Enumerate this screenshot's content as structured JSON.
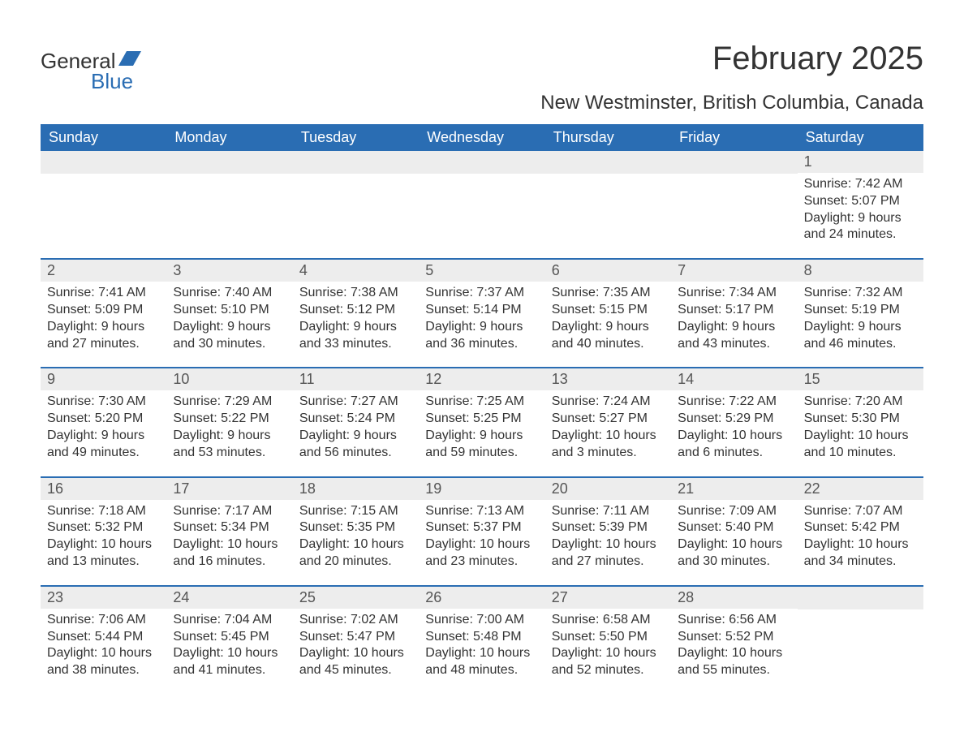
{
  "logo": {
    "text1": "General",
    "text2": "Blue"
  },
  "title": "February 2025",
  "location": "New Westminster, British Columbia, Canada",
  "colors": {
    "header_bg": "#2a6db3",
    "header_text": "#ffffff",
    "daynum_bg": "#ededed",
    "daynum_text": "#555555",
    "body_text": "#333333",
    "accent": "#2a6db3",
    "page_bg": "#ffffff"
  },
  "weekdays": [
    "Sunday",
    "Monday",
    "Tuesday",
    "Wednesday",
    "Thursday",
    "Friday",
    "Saturday"
  ],
  "weeks": [
    [
      null,
      null,
      null,
      null,
      null,
      null,
      {
        "n": "1",
        "sr": "Sunrise: 7:42 AM",
        "ss": "Sunset: 5:07 PM",
        "d1": "Daylight: 9 hours",
        "d2": "and 24 minutes."
      }
    ],
    [
      {
        "n": "2",
        "sr": "Sunrise: 7:41 AM",
        "ss": "Sunset: 5:09 PM",
        "d1": "Daylight: 9 hours",
        "d2": "and 27 minutes."
      },
      {
        "n": "3",
        "sr": "Sunrise: 7:40 AM",
        "ss": "Sunset: 5:10 PM",
        "d1": "Daylight: 9 hours",
        "d2": "and 30 minutes."
      },
      {
        "n": "4",
        "sr": "Sunrise: 7:38 AM",
        "ss": "Sunset: 5:12 PM",
        "d1": "Daylight: 9 hours",
        "d2": "and 33 minutes."
      },
      {
        "n": "5",
        "sr": "Sunrise: 7:37 AM",
        "ss": "Sunset: 5:14 PM",
        "d1": "Daylight: 9 hours",
        "d2": "and 36 minutes."
      },
      {
        "n": "6",
        "sr": "Sunrise: 7:35 AM",
        "ss": "Sunset: 5:15 PM",
        "d1": "Daylight: 9 hours",
        "d2": "and 40 minutes."
      },
      {
        "n": "7",
        "sr": "Sunrise: 7:34 AM",
        "ss": "Sunset: 5:17 PM",
        "d1": "Daylight: 9 hours",
        "d2": "and 43 minutes."
      },
      {
        "n": "8",
        "sr": "Sunrise: 7:32 AM",
        "ss": "Sunset: 5:19 PM",
        "d1": "Daylight: 9 hours",
        "d2": "and 46 minutes."
      }
    ],
    [
      {
        "n": "9",
        "sr": "Sunrise: 7:30 AM",
        "ss": "Sunset: 5:20 PM",
        "d1": "Daylight: 9 hours",
        "d2": "and 49 minutes."
      },
      {
        "n": "10",
        "sr": "Sunrise: 7:29 AM",
        "ss": "Sunset: 5:22 PM",
        "d1": "Daylight: 9 hours",
        "d2": "and 53 minutes."
      },
      {
        "n": "11",
        "sr": "Sunrise: 7:27 AM",
        "ss": "Sunset: 5:24 PM",
        "d1": "Daylight: 9 hours",
        "d2": "and 56 minutes."
      },
      {
        "n": "12",
        "sr": "Sunrise: 7:25 AM",
        "ss": "Sunset: 5:25 PM",
        "d1": "Daylight: 9 hours",
        "d2": "and 59 minutes."
      },
      {
        "n": "13",
        "sr": "Sunrise: 7:24 AM",
        "ss": "Sunset: 5:27 PM",
        "d1": "Daylight: 10 hours",
        "d2": "and 3 minutes."
      },
      {
        "n": "14",
        "sr": "Sunrise: 7:22 AM",
        "ss": "Sunset: 5:29 PM",
        "d1": "Daylight: 10 hours",
        "d2": "and 6 minutes."
      },
      {
        "n": "15",
        "sr": "Sunrise: 7:20 AM",
        "ss": "Sunset: 5:30 PM",
        "d1": "Daylight: 10 hours",
        "d2": "and 10 minutes."
      }
    ],
    [
      {
        "n": "16",
        "sr": "Sunrise: 7:18 AM",
        "ss": "Sunset: 5:32 PM",
        "d1": "Daylight: 10 hours",
        "d2": "and 13 minutes."
      },
      {
        "n": "17",
        "sr": "Sunrise: 7:17 AM",
        "ss": "Sunset: 5:34 PM",
        "d1": "Daylight: 10 hours",
        "d2": "and 16 minutes."
      },
      {
        "n": "18",
        "sr": "Sunrise: 7:15 AM",
        "ss": "Sunset: 5:35 PM",
        "d1": "Daylight: 10 hours",
        "d2": "and 20 minutes."
      },
      {
        "n": "19",
        "sr": "Sunrise: 7:13 AM",
        "ss": "Sunset: 5:37 PM",
        "d1": "Daylight: 10 hours",
        "d2": "and 23 minutes."
      },
      {
        "n": "20",
        "sr": "Sunrise: 7:11 AM",
        "ss": "Sunset: 5:39 PM",
        "d1": "Daylight: 10 hours",
        "d2": "and 27 minutes."
      },
      {
        "n": "21",
        "sr": "Sunrise: 7:09 AM",
        "ss": "Sunset: 5:40 PM",
        "d1": "Daylight: 10 hours",
        "d2": "and 30 minutes."
      },
      {
        "n": "22",
        "sr": "Sunrise: 7:07 AM",
        "ss": "Sunset: 5:42 PM",
        "d1": "Daylight: 10 hours",
        "d2": "and 34 minutes."
      }
    ],
    [
      {
        "n": "23",
        "sr": "Sunrise: 7:06 AM",
        "ss": "Sunset: 5:44 PM",
        "d1": "Daylight: 10 hours",
        "d2": "and 38 minutes."
      },
      {
        "n": "24",
        "sr": "Sunrise: 7:04 AM",
        "ss": "Sunset: 5:45 PM",
        "d1": "Daylight: 10 hours",
        "d2": "and 41 minutes."
      },
      {
        "n": "25",
        "sr": "Sunrise: 7:02 AM",
        "ss": "Sunset: 5:47 PM",
        "d1": "Daylight: 10 hours",
        "d2": "and 45 minutes."
      },
      {
        "n": "26",
        "sr": "Sunrise: 7:00 AM",
        "ss": "Sunset: 5:48 PM",
        "d1": "Daylight: 10 hours",
        "d2": "and 48 minutes."
      },
      {
        "n": "27",
        "sr": "Sunrise: 6:58 AM",
        "ss": "Sunset: 5:50 PM",
        "d1": "Daylight: 10 hours",
        "d2": "and 52 minutes."
      },
      {
        "n": "28",
        "sr": "Sunrise: 6:56 AM",
        "ss": "Sunset: 5:52 PM",
        "d1": "Daylight: 10 hours",
        "d2": "and 55 minutes."
      },
      null
    ]
  ]
}
